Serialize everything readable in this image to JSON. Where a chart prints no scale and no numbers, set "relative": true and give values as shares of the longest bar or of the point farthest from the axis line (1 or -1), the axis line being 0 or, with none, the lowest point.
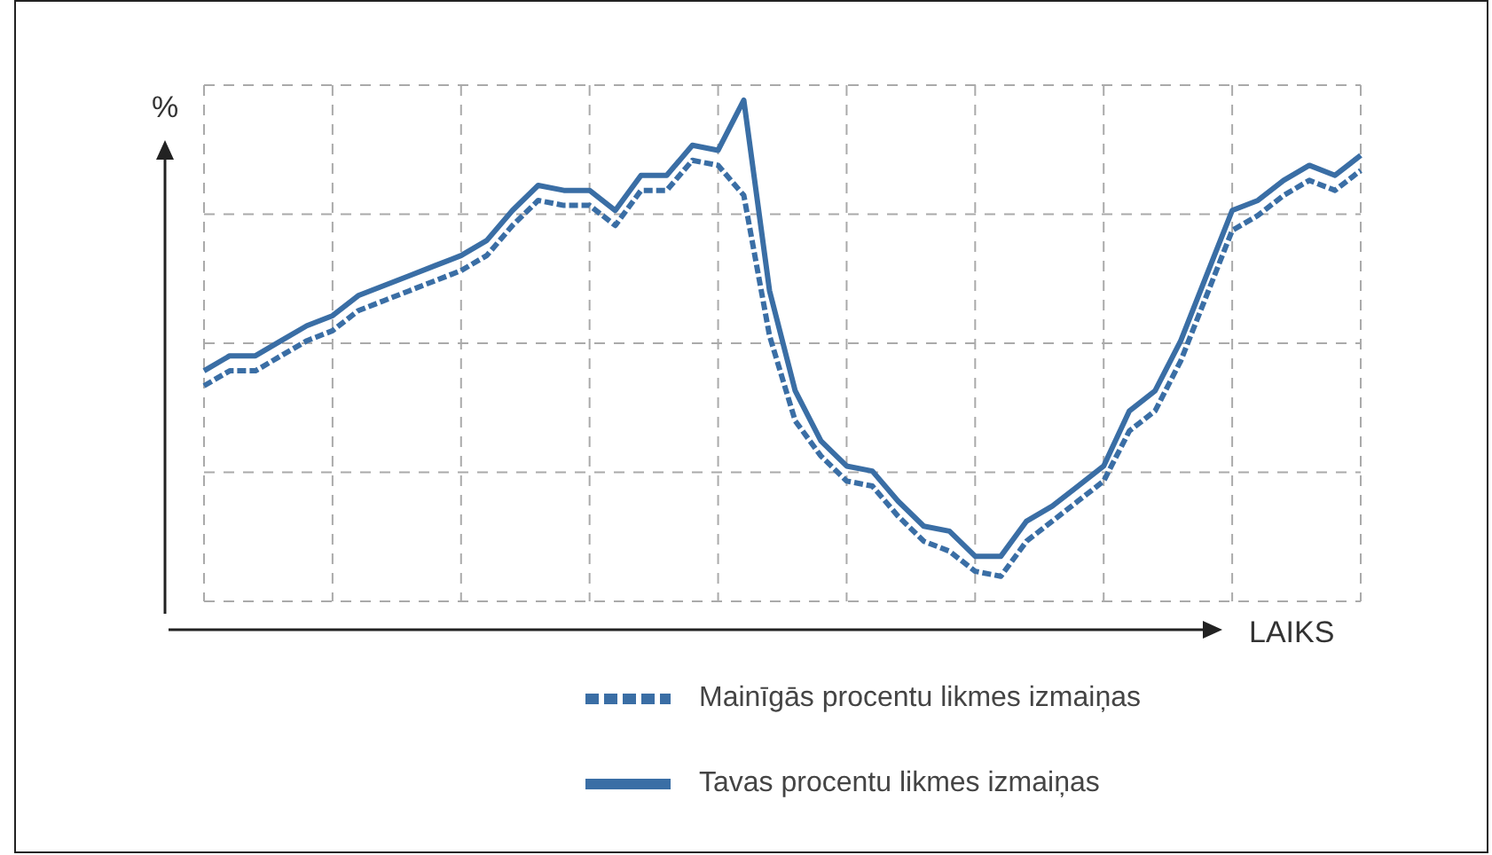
{
  "chart_data": {
    "type": "line",
    "relative": true,
    "ylabel": "%",
    "xlabel": "LAIKS",
    "grid": true,
    "legend": "bottom",
    "categories": [
      null,
      null,
      null,
      null,
      null,
      null,
      null,
      null,
      null,
      null,
      null,
      null,
      null,
      null,
      null,
      null,
      null,
      null,
      null,
      null,
      null,
      null,
      null,
      null,
      null,
      null,
      null,
      null,
      null,
      null,
      null,
      null,
      null,
      null,
      null,
      null,
      null,
      null,
      null,
      null,
      null,
      null,
      null,
      null,
      null,
      null
    ],
    "series": [
      {
        "name": "Tavas procentu likmes izmaiņas",
        "color": "#3a6ea5",
        "line_style": "solid",
        "values": [
          0.46,
          0.49,
          0.49,
          0.52,
          0.55,
          0.57,
          0.61,
          0.63,
          0.65,
          0.67,
          0.69,
          0.72,
          0.78,
          0.83,
          0.82,
          0.82,
          0.78,
          0.85,
          0.85,
          0.91,
          0.9,
          1.0,
          0.62,
          0.42,
          0.32,
          0.27,
          0.26,
          0.2,
          0.15,
          0.14,
          0.09,
          0.09,
          0.16,
          0.19,
          0.23,
          0.27,
          0.38,
          0.42,
          0.52,
          0.65,
          0.78,
          0.8,
          0.84,
          0.87,
          0.85,
          0.89
        ]
      },
      {
        "name": "Mainīgās procentu likmes izmaiņas",
        "color": "#3a6ea5",
        "line_style": "dashed",
        "values": [
          0.43,
          0.46,
          0.46,
          0.49,
          0.52,
          0.54,
          0.58,
          0.6,
          0.62,
          0.64,
          0.66,
          0.69,
          0.75,
          0.8,
          0.79,
          0.79,
          0.75,
          0.82,
          0.82,
          0.88,
          0.87,
          0.81,
          0.53,
          0.36,
          0.29,
          0.24,
          0.23,
          0.17,
          0.12,
          0.1,
          0.06,
          0.05,
          0.12,
          0.16,
          0.2,
          0.24,
          0.34,
          0.38,
          0.48,
          0.61,
          0.74,
          0.77,
          0.81,
          0.84,
          0.82,
          0.86
        ]
      }
    ]
  }
}
